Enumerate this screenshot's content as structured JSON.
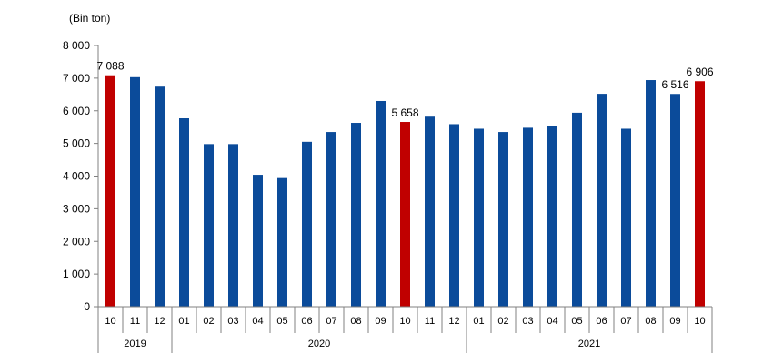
{
  "chart_data": {
    "type": "bar",
    "unit_label": "(Bin ton)",
    "ylim": [
      0,
      8000
    ],
    "y_ticks": [
      "0",
      "1 000",
      "2 000",
      "3 000",
      "4 000",
      "5 000",
      "6 000",
      "7 000",
      "8 000"
    ],
    "categories": [
      "10",
      "11",
      "12",
      "01",
      "02",
      "03",
      "04",
      "05",
      "06",
      "07",
      "08",
      "09",
      "10",
      "11",
      "12",
      "01",
      "02",
      "03",
      "04",
      "05",
      "06",
      "07",
      "08",
      "09",
      "10"
    ],
    "values": [
      7088,
      7030,
      6740,
      5770,
      4980,
      4980,
      4040,
      3940,
      5050,
      5350,
      5630,
      6300,
      5658,
      5820,
      5590,
      5450,
      5350,
      5480,
      5520,
      5940,
      6520,
      5450,
      6940,
      6516,
      6906
    ],
    "highlight_indices": [
      0,
      12,
      24
    ],
    "data_labels": [
      {
        "index": 0,
        "text": "7 088"
      },
      {
        "index": 12,
        "text": "5 658"
      },
      {
        "index": 23,
        "text": "6 516"
      },
      {
        "index": 24,
        "text": "6 906"
      }
    ],
    "year_groups": [
      {
        "label": "2019",
        "start": 0,
        "end": 2
      },
      {
        "label": "2020",
        "start": 3,
        "end": 14
      },
      {
        "label": "2021",
        "start": 15,
        "end": 24
      }
    ],
    "colors": {
      "bar": "#0B4B9A",
      "highlight": "#C00000",
      "axis": "#808080"
    },
    "grid": false,
    "legend": "none"
  }
}
